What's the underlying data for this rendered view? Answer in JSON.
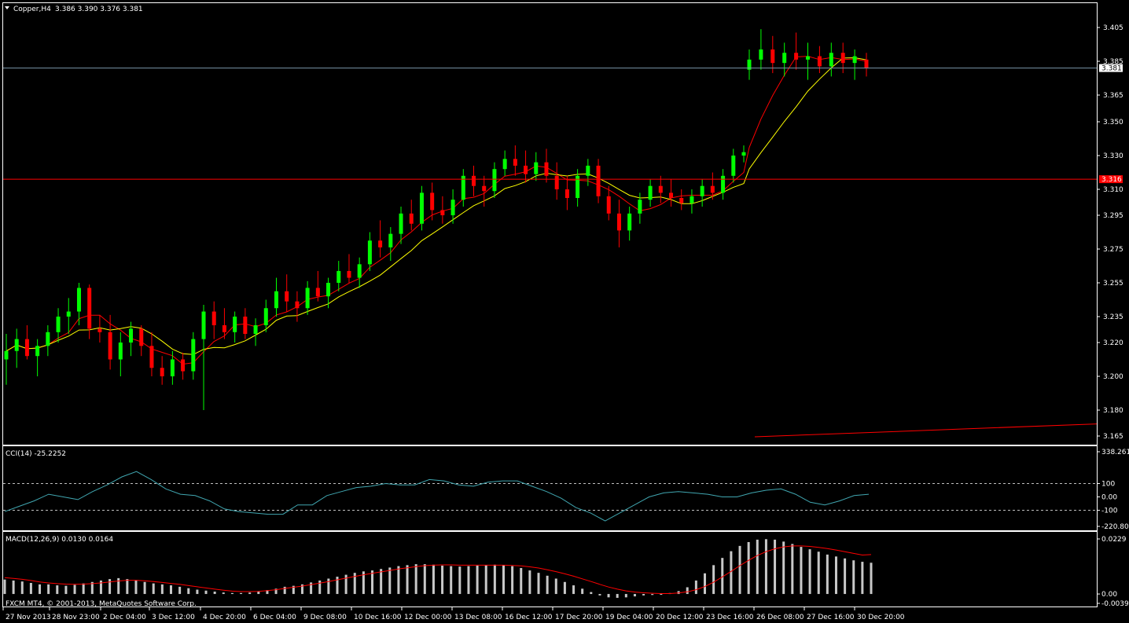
{
  "header": {
    "symbol_label": "Copper,H4",
    "ohlc_label": "3.386 3.390 3.376 3.381"
  },
  "footer": {
    "copyright": "FXCM MT4, © 2001-2013, MetaQuotes Software Corp."
  },
  "colors": {
    "background": "#000000",
    "bull": "#00ff00",
    "bear": "#ff0000",
    "ma_fast": "#ff0000",
    "ma_slow": "#ffff00",
    "cci_line": "#40a6b0",
    "macd_hist": "#c8c8c8",
    "macd_signal": "#ff0000",
    "frame": "#ffffff",
    "bid_line": "#7a95a8",
    "level_line": "#ff0000"
  },
  "chart_data": [
    {
      "type": "candlestick",
      "panel": "price",
      "ylim": [
        3.16,
        3.42
      ],
      "yticks": [
        "3.405",
        "3.385",
        "3.365",
        "3.350",
        "3.330",
        "3.310",
        "3.295",
        "3.275",
        "3.255",
        "3.235",
        "3.220",
        "3.200",
        "3.180",
        "3.165"
      ],
      "xlabels": [
        "27 Nov 2013",
        "28 Nov 23:00",
        "2 Dec 04:00",
        "3 Dec 12:00",
        "4 Dec 20:00",
        "6 Dec 04:00",
        "9 Dec 08:00",
        "10 Dec 16:00",
        "12 Dec 00:00",
        "13 Dec 08:00",
        "16 Dec 12:00",
        "17 Dec 20:00",
        "19 Dec 04:00",
        "20 Dec 12:00",
        "23 Dec 16:00",
        "26 Dec 08:00",
        "27 Dec 16:00",
        "30 Dec 20:00"
      ],
      "current_price": {
        "value": 3.381,
        "label": "3.381"
      },
      "level_line": {
        "value": 3.316,
        "label": "3.316"
      },
      "trendline": {
        "from": 3.165,
        "to": 3.172
      },
      "candles": [
        [
          3.21,
          3.225,
          3.195,
          3.215
        ],
        [
          3.215,
          3.228,
          3.205,
          3.222
        ],
        [
          3.222,
          3.23,
          3.21,
          3.212
        ],
        [
          3.212,
          3.222,
          3.2,
          3.218
        ],
        [
          3.218,
          3.23,
          3.212,
          3.226
        ],
        [
          3.226,
          3.24,
          3.22,
          3.235
        ],
        [
          3.235,
          3.246,
          3.225,
          3.238
        ],
        [
          3.238,
          3.255,
          3.23,
          3.252
        ],
        [
          3.252,
          3.254,
          3.222,
          3.228
        ],
        [
          3.228,
          3.236,
          3.22,
          3.226
        ],
        [
          3.226,
          3.236,
          3.204,
          3.21
        ],
        [
          3.21,
          3.226,
          3.2,
          3.22
        ],
        [
          3.22,
          3.232,
          3.212,
          3.228
        ],
        [
          3.228,
          3.23,
          3.212,
          3.218
        ],
        [
          3.218,
          3.226,
          3.2,
          3.205
        ],
        [
          3.205,
          3.212,
          3.195,
          3.2
        ],
        [
          3.2,
          3.215,
          3.195,
          3.21
        ],
        [
          3.21,
          3.214,
          3.198,
          3.203
        ],
        [
          3.203,
          3.226,
          3.198,
          3.222
        ],
        [
          3.222,
          3.242,
          3.18,
          3.238
        ],
        [
          3.238,
          3.244,
          3.222,
          3.23
        ],
        [
          3.23,
          3.24,
          3.222,
          3.226
        ],
        [
          3.226,
          3.238,
          3.22,
          3.235
        ],
        [
          3.235,
          3.24,
          3.222,
          3.225
        ],
        [
          3.225,
          3.234,
          3.218,
          3.23
        ],
        [
          3.23,
          3.245,
          3.226,
          3.24
        ],
        [
          3.24,
          3.258,
          3.235,
          3.25
        ],
        [
          3.25,
          3.26,
          3.238,
          3.244
        ],
        [
          3.244,
          3.25,
          3.232,
          3.24
        ],
        [
          3.24,
          3.256,
          3.236,
          3.252
        ],
        [
          3.252,
          3.262,
          3.244,
          3.247
        ],
        [
          3.247,
          3.258,
          3.24,
          3.255
        ],
        [
          3.255,
          3.268,
          3.25,
          3.262
        ],
        [
          3.262,
          3.272,
          3.255,
          3.258
        ],
        [
          3.258,
          3.27,
          3.252,
          3.266
        ],
        [
          3.266,
          3.285,
          3.262,
          3.28
        ],
        [
          3.28,
          3.292,
          3.27,
          3.276
        ],
        [
          3.276,
          3.288,
          3.268,
          3.284
        ],
        [
          3.284,
          3.3,
          3.278,
          3.296
        ],
        [
          3.296,
          3.304,
          3.286,
          3.29
        ],
        [
          3.29,
          3.312,
          3.286,
          3.308
        ],
        [
          3.308,
          3.314,
          3.292,
          3.298
        ],
        [
          3.298,
          3.306,
          3.29,
          3.295
        ],
        [
          3.295,
          3.31,
          3.29,
          3.304
        ],
        [
          3.304,
          3.322,
          3.3,
          3.318
        ],
        [
          3.318,
          3.324,
          3.306,
          3.312
        ],
        [
          3.312,
          3.318,
          3.3,
          3.309
        ],
        [
          3.309,
          3.326,
          3.305,
          3.322
        ],
        [
          3.322,
          3.333,
          3.318,
          3.328
        ],
        [
          3.328,
          3.336,
          3.318,
          3.324
        ],
        [
          3.324,
          3.333,
          3.314,
          3.319
        ],
        [
          3.319,
          3.332,
          3.315,
          3.326
        ],
        [
          3.326,
          3.334,
          3.314,
          3.318
        ],
        [
          3.318,
          3.326,
          3.304,
          3.31
        ],
        [
          3.31,
          3.318,
          3.298,
          3.305
        ],
        [
          3.305,
          3.322,
          3.3,
          3.318
        ],
        [
          3.318,
          3.328,
          3.312,
          3.324
        ],
        [
          3.324,
          3.328,
          3.302,
          3.306
        ],
        [
          3.306,
          3.312,
          3.292,
          3.296
        ],
        [
          3.296,
          3.304,
          3.276,
          3.286
        ],
        [
          3.286,
          3.3,
          3.28,
          3.296
        ],
        [
          3.296,
          3.308,
          3.29,
          3.304
        ],
        [
          3.304,
          3.316,
          3.3,
          3.312
        ],
        [
          3.312,
          3.318,
          3.302,
          3.308
        ],
        [
          3.308,
          3.316,
          3.3,
          3.305
        ],
        [
          3.305,
          3.31,
          3.298,
          3.302
        ],
        [
          3.302,
          3.31,
          3.296,
          3.306
        ],
        [
          3.306,
          3.316,
          3.3,
          3.312
        ],
        [
          3.312,
          3.32,
          3.304,
          3.308
        ],
        [
          3.308,
          3.322,
          3.304,
          3.318
        ],
        [
          3.318,
          3.334,
          3.314,
          3.33
        ],
        [
          3.33,
          3.336,
          3.326,
          3.332
        ],
        [
          3.38,
          3.392,
          3.374,
          3.386
        ],
        [
          3.386,
          3.404,
          3.38,
          3.392
        ],
        [
          3.392,
          3.4,
          3.378,
          3.384
        ],
        [
          3.384,
          3.396,
          3.376,
          3.39
        ],
        [
          3.39,
          3.402,
          3.38,
          3.386
        ],
        [
          3.386,
          3.396,
          3.374,
          3.388
        ],
        [
          3.388,
          3.394,
          3.378,
          3.382
        ],
        [
          3.382,
          3.396,
          3.376,
          3.39
        ],
        [
          3.39,
          3.396,
          3.378,
          3.384
        ],
        [
          3.384,
          3.392,
          3.374,
          3.388
        ],
        [
          3.386,
          3.39,
          3.376,
          3.381
        ]
      ]
    },
    {
      "type": "line",
      "panel": "cci",
      "title": "CCI(14) -25.2252",
      "ylim": [
        -220.806,
        338.2613
      ],
      "ytick_labels": [
        "338.2613",
        "100",
        "0.00",
        "-100",
        "-220.806"
      ],
      "levels": [
        100,
        0,
        -100
      ],
      "values": [
        -110,
        -70,
        -30,
        20,
        0,
        -20,
        40,
        90,
        150,
        190,
        130,
        60,
        20,
        10,
        -30,
        -90,
        -110,
        -120,
        -130,
        -130,
        -60,
        -60,
        10,
        40,
        70,
        80,
        100,
        90,
        90,
        130,
        120,
        90,
        80,
        110,
        120,
        120,
        80,
        40,
        -10,
        -80,
        -120,
        -180,
        -120,
        -60,
        0,
        30,
        40,
        30,
        20,
        0,
        0,
        30,
        50,
        60,
        20,
        -40,
        -60,
        -30,
        10,
        20
      ]
    },
    {
      "type": "bar+line",
      "panel": "macd",
      "title": "MACD(12,26,9) 0.0130 0.0164",
      "ylim": [
        -0.0039,
        0.0229
      ],
      "ytick_labels": [
        "0.0229",
        "0.00",
        "-0.0039"
      ],
      "histogram": [
        0.006,
        0.0056,
        0.0052,
        0.0046,
        0.004,
        0.004,
        0.0036,
        0.0034,
        0.0038,
        0.0044,
        0.005,
        0.0056,
        0.0062,
        0.0066,
        0.0062,
        0.0056,
        0.005,
        0.0044,
        0.004,
        0.0036,
        0.003,
        0.0024,
        0.0018,
        0.0014,
        0.001,
        0.0006,
        0.0004,
        0.0004,
        0.0006,
        0.001,
        0.0016,
        0.0022,
        0.003,
        0.0034,
        0.004,
        0.0048,
        0.0056,
        0.0064,
        0.0072,
        0.008,
        0.0088,
        0.0094,
        0.0098,
        0.0104,
        0.011,
        0.0116,
        0.012,
        0.0124,
        0.0124,
        0.0122,
        0.0118,
        0.0116,
        0.0114,
        0.0116,
        0.0118,
        0.012,
        0.0122,
        0.012,
        0.0116,
        0.0108,
        0.0098,
        0.0088,
        0.0076,
        0.0064,
        0.005,
        0.0036,
        0.0022,
        0.0008,
        -0.0006,
        -0.0014,
        -0.0016,
        -0.0014,
        -0.001,
        -0.0006,
        -0.0004,
        -0.0002,
        0.0004,
        0.0012,
        0.0028,
        0.0056,
        0.0086,
        0.012,
        0.015,
        0.0178,
        0.02,
        0.0216,
        0.0226,
        0.0228,
        0.0226,
        0.0218,
        0.0208,
        0.0196,
        0.0186,
        0.0176,
        0.0164,
        0.0156,
        0.0148,
        0.014,
        0.0134,
        0.013
      ],
      "signal": [
        0.0068,
        0.0065,
        0.0061,
        0.0056,
        0.005,
        0.0046,
        0.0043,
        0.0041,
        0.004,
        0.0041,
        0.0043,
        0.0046,
        0.005,
        0.0054,
        0.0057,
        0.0057,
        0.0055,
        0.0052,
        0.0048,
        0.0044,
        0.004,
        0.0035,
        0.003,
        0.0025,
        0.002,
        0.0016,
        0.0012,
        0.001,
        0.001,
        0.0011,
        0.0014,
        0.0018,
        0.0023,
        0.0028,
        0.0033,
        0.0039,
        0.0045,
        0.0052,
        0.0059,
        0.0066,
        0.0073,
        0.008,
        0.0086,
        0.0092,
        0.0098,
        0.0104,
        0.0109,
        0.0114,
        0.0118,
        0.012,
        0.0121,
        0.0121,
        0.012,
        0.012,
        0.012,
        0.012,
        0.012,
        0.012,
        0.0119,
        0.0117,
        0.0113,
        0.0108,
        0.0101,
        0.0093,
        0.0084,
        0.0074,
        0.0063,
        0.0052,
        0.004,
        0.0029,
        0.002,
        0.0013,
        0.0008,
        0.0005,
        0.0003,
        0.0002,
        0.0002,
        0.0004,
        0.0009,
        0.0018,
        0.0031,
        0.0049,
        0.0071,
        0.0094,
        0.0118,
        0.014,
        0.016,
        0.0176,
        0.0188,
        0.0196,
        0.02,
        0.02,
        0.0198,
        0.0194,
        0.0189,
        0.0183,
        0.0176,
        0.0169,
        0.0162,
        0.0164
      ]
    }
  ]
}
